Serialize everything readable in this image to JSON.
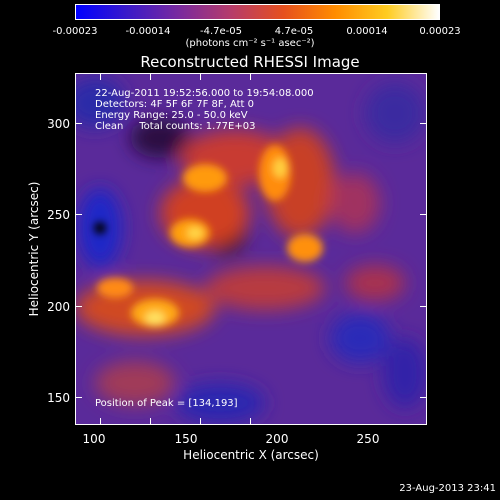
{
  "colorbar": {
    "ticks": [
      "-0.00023",
      "-0.00014",
      "-4.7e-05",
      "4.7e-05",
      "0.00014",
      "0.00023"
    ],
    "units": "(photons cm⁻² s⁻¹ asec⁻²)",
    "colors": [
      "#0000ff",
      "#3b1ac8",
      "#7a2a9e",
      "#b63c6a",
      "#e6501e",
      "#ff8c00",
      "#ffcc20",
      "#ffffff"
    ]
  },
  "title": "Reconstructed RHESSI Image",
  "info": {
    "time_range": "22-Aug-2011 19:52:56.000 to 19:54:08.000",
    "detectors": "Detectors: 4F 5F 6F 7F 8F, Att 0",
    "energy": "Energy Range: 25.0 - 50.0 keV",
    "clean": "Clean     Total counts: 1.77E+03",
    "peak": "Position of Peak = [134,193]"
  },
  "axes": {
    "xlabel": "Heliocentric X (arcsec)",
    "ylabel": "Heliocentric Y (arcsec)",
    "xticks": [
      "100",
      "150",
      "200",
      "250"
    ],
    "yticks": [
      "300",
      "250",
      "200",
      "150"
    ]
  },
  "timestamp": "23-Aug-2013 23:41"
}
